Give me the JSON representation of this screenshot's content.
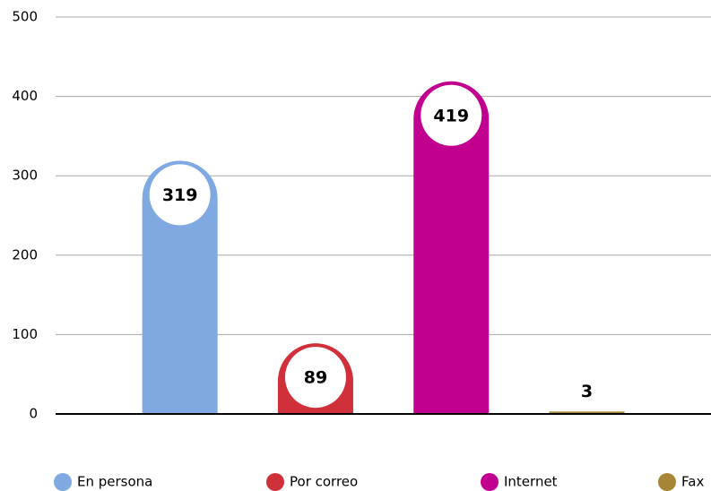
{
  "chart_data": {
    "type": "bar",
    "categories": [
      "En persona",
      "Por correo",
      "Internet",
      "Fax"
    ],
    "values": [
      319,
      89,
      419,
      3
    ],
    "colors": [
      "#7fa9e0",
      "#d0303a",
      "#c2008f",
      "#a88436"
    ],
    "ylim": [
      0,
      500
    ],
    "yticks": [
      0,
      100,
      200,
      300,
      400,
      500
    ],
    "grid": true,
    "legend": "bottom"
  }
}
